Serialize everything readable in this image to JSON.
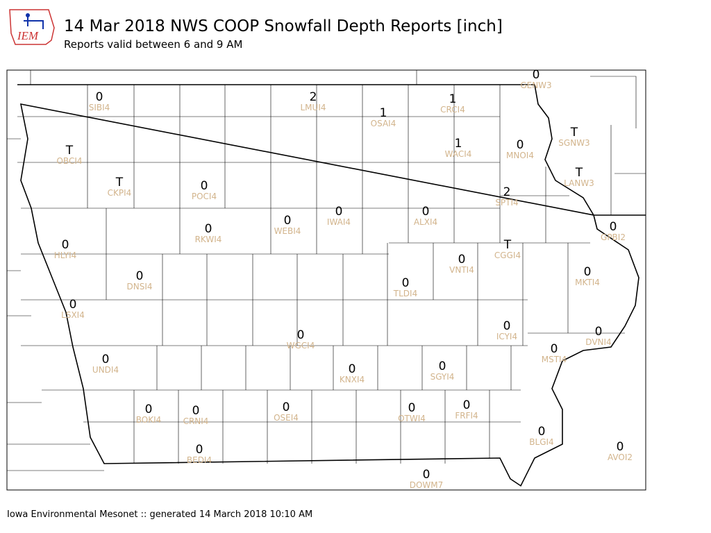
{
  "header": {
    "logo": "IEM",
    "title": "14 Mar 2018 NWS COOP Snowfall Depth Reports [inch]",
    "subtitle": "Reports valid between 6 and 9 AM"
  },
  "stations": [
    {
      "value": "0",
      "id": "SIBI4"
    },
    {
      "value": "2",
      "id": "LMUI4"
    },
    {
      "value": "1",
      "id": "OSAI4"
    },
    {
      "value": "1",
      "id": "CRCI4"
    },
    {
      "value": "0",
      "id": "GENW3"
    },
    {
      "value": "T",
      "id": "OBCI4"
    },
    {
      "value": "T",
      "id": "SGNW3"
    },
    {
      "value": "1",
      "id": "WACI4"
    },
    {
      "value": "0",
      "id": "MNOI4"
    },
    {
      "value": "T",
      "id": "LANW3"
    },
    {
      "value": "T",
      "id": "CKPI4"
    },
    {
      "value": "0",
      "id": "POCI4"
    },
    {
      "value": "2",
      "id": "SPTI4"
    },
    {
      "value": "0",
      "id": "ALXI4"
    },
    {
      "value": "0",
      "id": "IWAI4"
    },
    {
      "value": "0",
      "id": "WEBI4"
    },
    {
      "value": "0",
      "id": "RKWI4"
    },
    {
      "value": "0",
      "id": "GPBI2"
    },
    {
      "value": "0",
      "id": "HLYI4"
    },
    {
      "value": "T",
      "id": "CGGI4"
    },
    {
      "value": "0",
      "id": "VNTI4"
    },
    {
      "value": "0",
      "id": "MKTI4"
    },
    {
      "value": "0",
      "id": "DNSI4"
    },
    {
      "value": "0",
      "id": "TLDI4"
    },
    {
      "value": "0",
      "id": "LSXI4"
    },
    {
      "value": "0",
      "id": "ICYI4"
    },
    {
      "value": "0",
      "id": "DVNI4"
    },
    {
      "value": "0",
      "id": "WGCI4"
    },
    {
      "value": "0",
      "id": "MSTI4"
    },
    {
      "value": "0",
      "id": "UNDI4"
    },
    {
      "value": "0",
      "id": "KNXI4"
    },
    {
      "value": "0",
      "id": "SGYI4"
    },
    {
      "value": "0",
      "id": "BOKI4"
    },
    {
      "value": "0",
      "id": "CRNI4"
    },
    {
      "value": "0",
      "id": "OSEI4"
    },
    {
      "value": "0",
      "id": "OTWI4"
    },
    {
      "value": "0",
      "id": "FRFI4"
    },
    {
      "value": "0",
      "id": "BLGI4"
    },
    {
      "value": "0",
      "id": "AVOI2"
    },
    {
      "value": "0",
      "id": "BEDI4"
    },
    {
      "value": "0",
      "id": "DOWM7"
    }
  ],
  "footer": "Iowa Environmental Mesonet :: generated 14 March 2018 10:10 AM"
}
